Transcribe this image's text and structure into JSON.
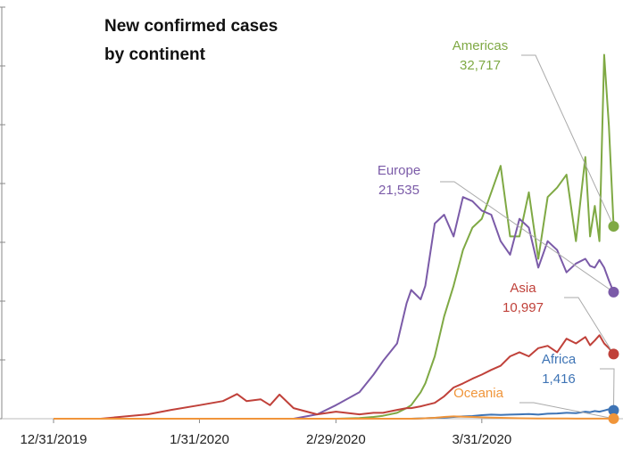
{
  "chart_data": {
    "type": "line",
    "title": [
      "New confirmed cases",
      "by continent"
    ],
    "x": [
      "12/31/2019",
      "1/10/2020",
      "1/20/2020",
      "1/25/2020",
      "1/31/2020",
      "2/5/2020",
      "2/8/2020",
      "2/10/2020",
      "2/13/2020",
      "2/15/2020",
      "2/17/2020",
      "2/20/2020",
      "2/25/2020",
      "2/29/2020",
      "3/5/2020",
      "3/8/2020",
      "3/10/2020",
      "3/13/2020",
      "3/15/2020",
      "3/16/2020",
      "3/18/2020",
      "3/19/2020",
      "3/21/2020",
      "3/23/2020",
      "3/25/2020",
      "3/27/2020",
      "3/29/2020",
      "3/31/2020",
      "4/2/2020",
      "4/4/2020",
      "4/6/2020",
      "4/8/2020",
      "4/10/2020",
      "4/12/2020",
      "4/14/2020",
      "4/16/2020",
      "4/18/2020",
      "4/20/2020",
      "4/22/2020",
      "4/23/2020",
      "4/24/2020",
      "4/25/2020",
      "4/26/2020",
      "4/27/2020",
      "4/28/2020"
    ],
    "xlim": [
      "12/20/2019",
      "4/30/2020"
    ],
    "xticks": [
      "12/31/2019",
      "1/31/2020",
      "2/29/2020",
      "3/31/2020"
    ],
    "ylim": [
      0,
      70000
    ],
    "yticks": [
      0,
      10000,
      20000,
      30000,
      40000,
      50000,
      60000,
      70000
    ],
    "series": [
      {
        "name": "Americas",
        "color": "#7fa944",
        "values": [
          0,
          0,
          0,
          0,
          0,
          0,
          0,
          0,
          0,
          0,
          0,
          0,
          0,
          0,
          100,
          300,
          500,
          1000,
          1800,
          2300,
          4500,
          6000,
          10600,
          17400,
          22600,
          28700,
          32500,
          34000,
          38500,
          43000,
          31000,
          31000,
          38500,
          27200,
          37700,
          39300,
          41500,
          30200,
          44500,
          31000,
          36200,
          30200,
          61900,
          49800,
          32717
        ],
        "value_labels": [
          null,
          null,
          null,
          null,
          null,
          null,
          null,
          null,
          null,
          null,
          null,
          null,
          null,
          null,
          null,
          null,
          null,
          null,
          null,
          null,
          null,
          null,
          null,
          null,
          null,
          null,
          null,
          null,
          null,
          null,
          null,
          null,
          null,
          null,
          null,
          null,
          null,
          null,
          null,
          null,
          null,
          null,
          null,
          null,
          "32,717"
        ]
      },
      {
        "name": "Europe",
        "color": "#7b5ba8",
        "values": [
          0,
          0,
          0,
          0,
          0,
          0,
          0,
          0,
          0,
          0,
          0,
          0,
          750,
          2300,
          4500,
          7500,
          9800,
          12800,
          19600,
          21900,
          20300,
          22600,
          33200,
          34700,
          31000,
          37700,
          37000,
          35400,
          34700,
          30200,
          27900,
          34000,
          32500,
          25700,
          30200,
          28700,
          24900,
          26400,
          27200,
          26000,
          25700,
          27000,
          25700,
          23500,
          21535
        ],
        "value_labels": [
          null,
          null,
          null,
          null,
          null,
          null,
          null,
          null,
          null,
          null,
          null,
          null,
          null,
          null,
          null,
          null,
          null,
          null,
          null,
          null,
          null,
          null,
          null,
          null,
          null,
          null,
          null,
          null,
          null,
          null,
          null,
          null,
          null,
          null,
          null,
          null,
          null,
          null,
          null,
          null,
          null,
          null,
          null,
          null,
          "21,535"
        ]
      },
      {
        "name": "Asia",
        "color": "#c0413a",
        "values": [
          0,
          0,
          750,
          1500,
          2300,
          3000,
          4200,
          3000,
          3300,
          2300,
          4100,
          1800,
          750,
          1200,
          750,
          1000,
          1000,
          1500,
          1800,
          1800,
          2100,
          2300,
          2700,
          3800,
          5300,
          6000,
          6800,
          7500,
          8300,
          9000,
          10600,
          11300,
          10600,
          12000,
          12400,
          11300,
          13600,
          12800,
          13900,
          12500,
          13300,
          14200,
          12800,
          12000,
          10997
        ],
        "value_labels": [
          null,
          null,
          null,
          null,
          null,
          null,
          null,
          null,
          null,
          null,
          null,
          null,
          null,
          null,
          null,
          null,
          null,
          null,
          null,
          null,
          null,
          null,
          null,
          null,
          null,
          null,
          null,
          null,
          null,
          null,
          null,
          null,
          null,
          null,
          null,
          null,
          null,
          null,
          null,
          null,
          null,
          null,
          null,
          null,
          "10,997"
        ]
      },
      {
        "name": "Africa",
        "color": "#3e74b5",
        "values": [
          0,
          0,
          0,
          0,
          0,
          0,
          0,
          0,
          0,
          0,
          0,
          0,
          0,
          0,
          0,
          0,
          0,
          0,
          0,
          0,
          60,
          80,
          150,
          200,
          300,
          400,
          450,
          600,
          700,
          650,
          700,
          750,
          800,
          700,
          850,
          900,
          1000,
          950,
          1200,
          1100,
          1300,
          1200,
          1400,
          1600,
          1416
        ],
        "value_labels": [
          null,
          null,
          null,
          null,
          null,
          null,
          null,
          null,
          null,
          null,
          null,
          null,
          null,
          null,
          null,
          null,
          null,
          null,
          null,
          null,
          null,
          null,
          null,
          null,
          null,
          null,
          null,
          null,
          null,
          null,
          null,
          null,
          null,
          null,
          null,
          null,
          null,
          null,
          null,
          null,
          null,
          null,
          null,
          null,
          "1,416"
        ]
      },
      {
        "name": "Oceania",
        "color": "#f0953a",
        "values": [
          0,
          0,
          0,
          0,
          0,
          0,
          0,
          0,
          0,
          0,
          0,
          0,
          0,
          0,
          0,
          0,
          0,
          0,
          0,
          0,
          50,
          80,
          150,
          300,
          400,
          350,
          300,
          250,
          200,
          150,
          100,
          80,
          60,
          40,
          30,
          30,
          25,
          20,
          20,
          15,
          20,
          15,
          20,
          15,
          17
        ],
        "value_labels": [
          null,
          null,
          null,
          null,
          null,
          null,
          null,
          null,
          null,
          null,
          null,
          null,
          null,
          null,
          null,
          null,
          null,
          null,
          null,
          null,
          null,
          null,
          null,
          null,
          null,
          null,
          null,
          null,
          null,
          null,
          null,
          null,
          null,
          null,
          null,
          null,
          null,
          null,
          null,
          null,
          null,
          null,
          null,
          null,
          null
        ]
      }
    ]
  }
}
